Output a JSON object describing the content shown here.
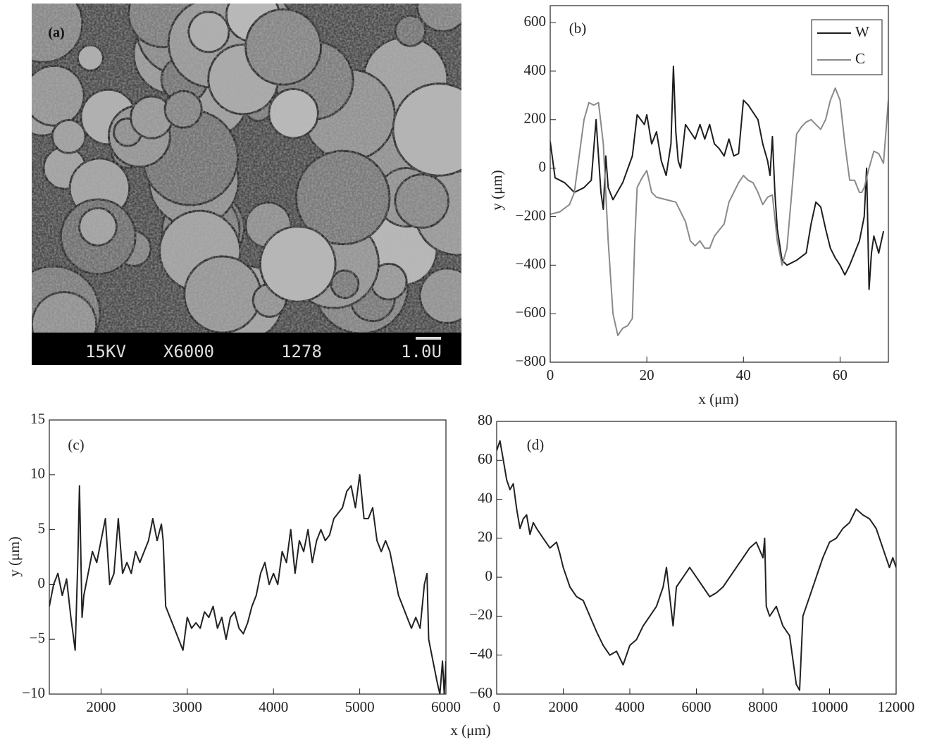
{
  "image_panel": {
    "label": "(a)",
    "info": [
      "15KV",
      "X6000",
      "1278",
      "1.0U"
    ]
  },
  "chart_data": [
    {
      "type": "line",
      "annotation": "(b)",
      "x_label": "x (μm)",
      "y_label": "y (μm)",
      "xlim": [
        0,
        70
      ],
      "ylim": [
        -800,
        670
      ],
      "xticks": [
        0,
        20,
        40,
        60
      ],
      "yticks": [
        {
          "value": -800,
          "label": "−800"
        },
        {
          "value": -600,
          "label": "−600"
        },
        {
          "value": -400,
          "label": "−400"
        },
        {
          "value": -200,
          "label": "−200"
        },
        0,
        200,
        400,
        600
      ],
      "legend": "top-right",
      "series": [
        {
          "name": "W",
          "color": "#1e1e1e",
          "x": [
            0,
            1,
            3,
            5,
            7,
            8.5,
            9.5,
            10.5,
            11,
            11.5,
            12,
            13,
            15,
            17,
            18,
            19.5,
            20,
            21,
            22,
            23,
            24,
            25,
            25.5,
            26,
            26.5,
            27,
            28,
            29,
            30,
            31,
            32,
            33,
            34,
            35,
            36,
            37,
            38,
            39,
            40,
            41,
            42,
            43,
            44,
            45,
            45.5,
            46,
            46.5,
            47,
            48,
            49,
            51,
            53,
            54,
            55,
            56,
            57,
            58,
            59,
            60,
            61,
            62,
            63,
            64,
            65,
            65.5,
            66,
            66.5,
            67,
            68,
            69
          ],
          "values": [
            110,
            -40,
            -60,
            -100,
            -80,
            -50,
            200,
            -100,
            -170,
            50,
            -80,
            -130,
            -60,
            50,
            220,
            180,
            220,
            100,
            150,
            30,
            -30,
            100,
            420,
            150,
            30,
            0,
            180,
            150,
            120,
            180,
            120,
            180,
            100,
            80,
            50,
            120,
            50,
            60,
            280,
            260,
            230,
            200,
            100,
            30,
            -30,
            130,
            -100,
            -250,
            -380,
            -400,
            -380,
            -350,
            -230,
            -140,
            -160,
            -250,
            -330,
            -370,
            -400,
            -440,
            -400,
            -350,
            -300,
            -200,
            0,
            -500,
            -350,
            -280,
            -350,
            -260
          ]
        },
        {
          "name": "C",
          "color": "#8a8a8a",
          "x": [
            0,
            2,
            4,
            5,
            6,
            7,
            8,
            9,
            10,
            11,
            12,
            13,
            14,
            15,
            16,
            17,
            17.5,
            18,
            19,
            20,
            21,
            22,
            24,
            26,
            27,
            28,
            29,
            30,
            31,
            32,
            33,
            34,
            36,
            37,
            38,
            39,
            40,
            41,
            42,
            43,
            44,
            45,
            46,
            47,
            48,
            49,
            50,
            51,
            52,
            53,
            54,
            55,
            56,
            57,
            58,
            59,
            60,
            61,
            62,
            63,
            64,
            64.5,
            65,
            66,
            67,
            68,
            69,
            70
          ],
          "values": [
            -190,
            -180,
            -150,
            -100,
            50,
            200,
            270,
            260,
            270,
            100,
            -300,
            -600,
            -690,
            -660,
            -650,
            -620,
            -300,
            -80,
            -40,
            -10,
            -100,
            -120,
            -130,
            -140,
            -180,
            -220,
            -300,
            -320,
            -300,
            -330,
            -330,
            -280,
            -230,
            -140,
            -100,
            -60,
            -30,
            -50,
            -60,
            -100,
            -150,
            -120,
            -110,
            -300,
            -400,
            -330,
            -100,
            140,
            170,
            190,
            200,
            180,
            160,
            200,
            280,
            330,
            280,
            100,
            -50,
            -50,
            -100,
            -100,
            -80,
            0,
            70,
            60,
            20,
            280
          ]
        }
      ]
    },
    {
      "type": "line",
      "annotation": "(c)",
      "y_label": "y (μm)",
      "color": "#222222",
      "xlim": [
        1400,
        6000
      ],
      "ylim": [
        -10,
        15
      ],
      "xticks": [
        2000,
        3000,
        4000,
        5000,
        6000
      ],
      "yticks": [
        {
          "value": -10,
          "label": "−10"
        },
        {
          "value": -5,
          "label": "−5"
        },
        0,
        5,
        10,
        15
      ],
      "x": [
        1400,
        1450,
        1500,
        1550,
        1600,
        1650,
        1700,
        1730,
        1750,
        1780,
        1800,
        1850,
        1900,
        1950,
        2000,
        2050,
        2100,
        2150,
        2200,
        2250,
        2300,
        2350,
        2400,
        2450,
        2500,
        2550,
        2600,
        2650,
        2700,
        2720,
        2750,
        2800,
        2850,
        2900,
        2950,
        3000,
        3050,
        3100,
        3150,
        3200,
        3250,
        3300,
        3350,
        3400,
        3450,
        3500,
        3550,
        3600,
        3650,
        3700,
        3750,
        3800,
        3850,
        3900,
        3950,
        4000,
        4050,
        4100,
        4150,
        4200,
        4250,
        4300,
        4350,
        4400,
        4450,
        4500,
        4550,
        4600,
        4650,
        4700,
        4750,
        4800,
        4850,
        4900,
        4950,
        5000,
        5050,
        5100,
        5150,
        5200,
        5250,
        5300,
        5350,
        5400,
        5450,
        5500,
        5550,
        5600,
        5650,
        5700,
        5750,
        5780,
        5800,
        5850,
        5900,
        5930,
        5960,
        5980,
        6000
      ],
      "values": [
        -2,
        0,
        1,
        -1,
        0.5,
        -3,
        -6,
        2,
        9,
        -3,
        -1,
        1,
        3,
        2,
        4,
        6,
        0,
        1,
        6,
        1,
        2,
        1,
        3,
        2,
        3,
        4,
        6,
        4,
        5.5,
        4,
        -2,
        -3,
        -4,
        -5,
        -6,
        -3,
        -4,
        -3.5,
        -4,
        -2.5,
        -3,
        -2,
        -4,
        -3,
        -5,
        -3,
        -2.5,
        -4,
        -4.5,
        -3.5,
        -2,
        -1,
        1,
        2,
        0,
        1,
        0,
        3,
        2,
        5,
        1,
        4,
        3,
        5,
        2,
        4,
        5,
        4,
        4.5,
        6,
        6.5,
        7,
        8.5,
        9,
        7,
        10,
        6,
        6,
        7,
        4,
        3,
        4,
        3,
        1,
        -1,
        -2,
        -3,
        -4,
        -3,
        -4,
        0,
        1,
        -5,
        -7,
        -9,
        -10,
        -7,
        -10,
        -7
      ]
    },
    {
      "type": "line",
      "annotation": "(d)",
      "x_label": "x (μm)",
      "color": "#222222",
      "xlim": [
        0,
        12000
      ],
      "ylim": [
        -60,
        80
      ],
      "xticks": [
        0,
        2000,
        4000,
        6000,
        8000,
        10000,
        12000
      ],
      "yticks": [
        {
          "value": -60,
          "label": "−60"
        },
        {
          "value": -40,
          "label": "−40"
        },
        {
          "value": -20,
          "label": "−20"
        },
        0,
        20,
        40,
        60,
        80
      ],
      "x": [
        0,
        100,
        200,
        300,
        400,
        500,
        600,
        700,
        800,
        900,
        1000,
        1100,
        1200,
        1400,
        1600,
        1800,
        1900,
        2000,
        2200,
        2400,
        2600,
        2800,
        3000,
        3200,
        3400,
        3600,
        3800,
        4000,
        4200,
        4400,
        4600,
        4800,
        5000,
        5100,
        5200,
        5300,
        5400,
        5600,
        5800,
        6000,
        6200,
        6400,
        6600,
        6800,
        7000,
        7200,
        7400,
        7600,
        7800,
        8000,
        8050,
        8100,
        8200,
        8400,
        8600,
        8800,
        9000,
        9100,
        9200,
        9400,
        9600,
        9800,
        10000,
        10200,
        10400,
        10600,
        10800,
        11000,
        11200,
        11400,
        11600,
        11800,
        11900,
        12000
      ],
      "values": [
        65,
        70,
        60,
        50,
        45,
        48,
        35,
        25,
        30,
        32,
        22,
        28,
        25,
        20,
        15,
        18,
        12,
        5,
        -5,
        -10,
        -12,
        -20,
        -28,
        -35,
        -40,
        -38,
        -45,
        -35,
        -32,
        -25,
        -20,
        -15,
        -5,
        5,
        -10,
        -25,
        -5,
        0,
        5,
        0,
        -5,
        -10,
        -8,
        -5,
        0,
        5,
        10,
        15,
        18,
        10,
        20,
        -15,
        -20,
        -15,
        -25,
        -30,
        -55,
        -58,
        -20,
        -10,
        0,
        10,
        18,
        20,
        25,
        28,
        35,
        32,
        30,
        25,
        15,
        5,
        10,
        5
      ]
    }
  ]
}
